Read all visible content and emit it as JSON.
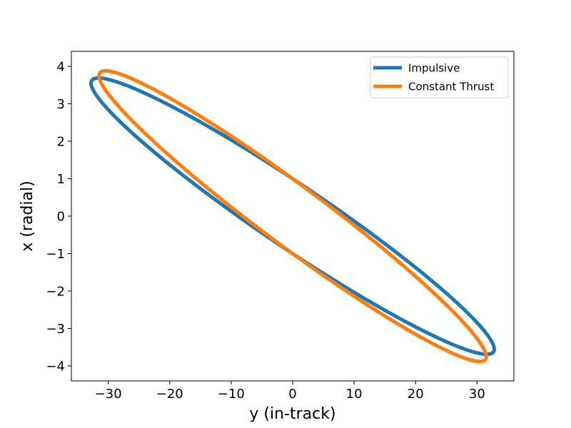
{
  "chart_data": {
    "type": "line",
    "xlabel": "y (in-track)",
    "ylabel": "x (radial)",
    "xlim": [
      -36,
      36
    ],
    "ylim": [
      -4.4,
      4.4
    ],
    "xticks": [
      -30,
      -20,
      -10,
      0,
      10,
      20,
      30
    ],
    "yticks": [
      -4,
      -3,
      -2,
      -1,
      0,
      1,
      2,
      3,
      4
    ],
    "xtick_labels": [
      "−30",
      "−20",
      "−10",
      "0",
      "10",
      "20",
      "30"
    ],
    "ytick_labels": [
      "−4",
      "−3",
      "−2",
      "−1",
      "0",
      "1",
      "2",
      "3",
      "4"
    ],
    "grid": false,
    "legend_position": "top-right",
    "series": [
      {
        "name": "Impulsive",
        "color": "#1f77b4",
        "shape": "closed ellipse",
        "center": [
          0,
          0
        ],
        "extreme_left": [
          -32.8,
          3.55
        ],
        "extreme_right": [
          32.6,
          -3.55
        ],
        "x_range": [
          -32.8,
          32.6
        ],
        "y_range": [
          -3.7,
          3.7
        ],
        "crosses_x0_at": [
          -1,
          1
        ]
      },
      {
        "name": "Constant Thrust",
        "color": "#ff7f0e",
        "shape": "closed ellipse",
        "center": [
          0,
          0
        ],
        "extreme_left": [
          -31.5,
          3.75
        ],
        "extreme_right": [
          31.5,
          -3.75
        ],
        "x_range": [
          -31.5,
          31.5
        ],
        "y_range": [
          -3.85,
          3.85
        ],
        "crosses_x0_at": [
          -1,
          1
        ]
      }
    ]
  }
}
